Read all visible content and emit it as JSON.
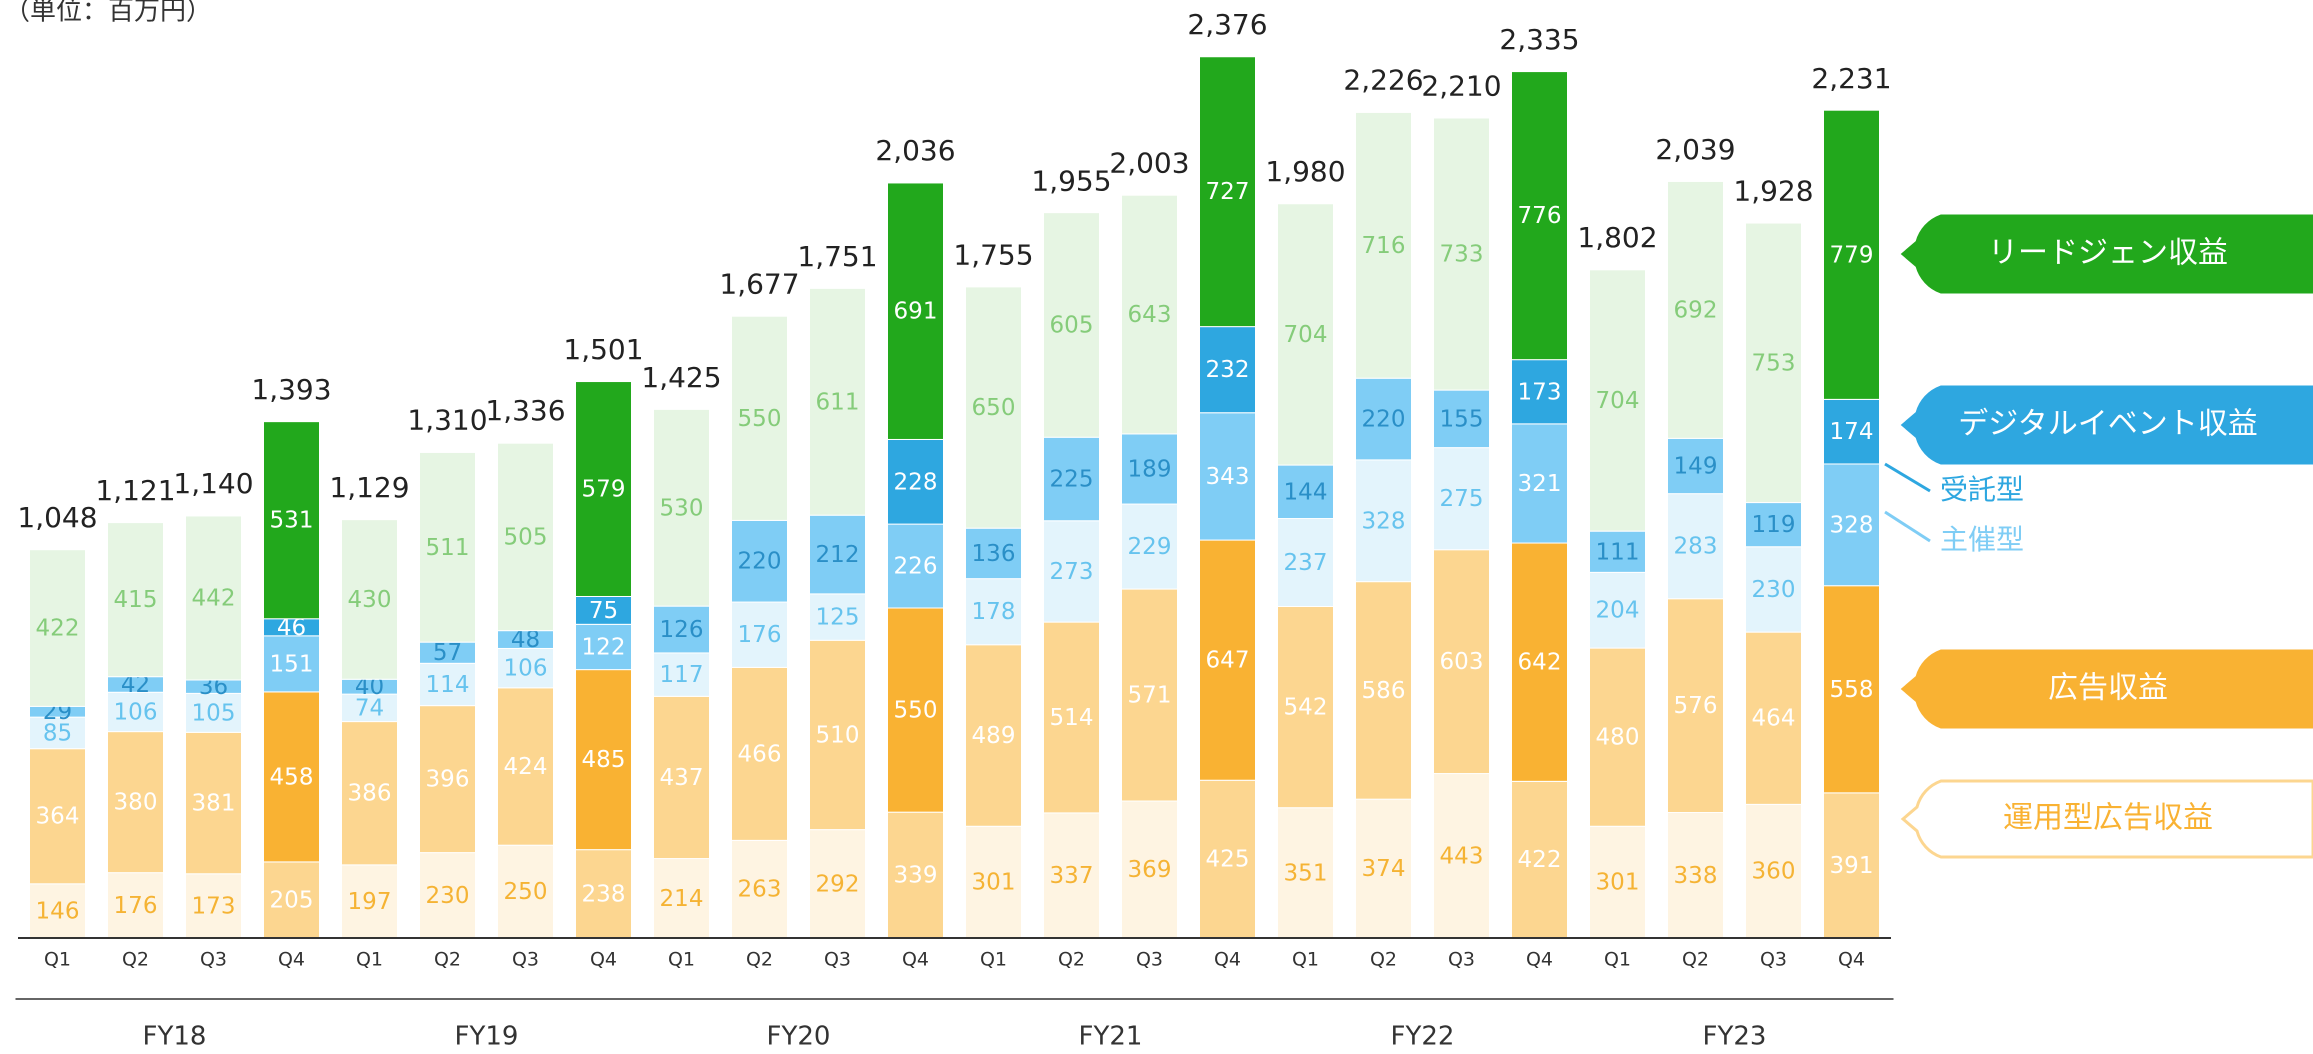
{
  "chart_data": {
    "type": "stacked_bar",
    "unit_note": "（単位：百万円）",
    "categories": [
      "Q1",
      "Q2",
      "Q3",
      "Q4",
      "Q1",
      "Q2",
      "Q3",
      "Q4",
      "Q1",
      "Q2",
      "Q3",
      "Q4",
      "Q1",
      "Q2",
      "Q3",
      "Q4",
      "Q1",
      "Q2",
      "Q3",
      "Q4",
      "Q1",
      "Q2",
      "Q3",
      "Q4"
    ],
    "groups": [
      {
        "label": "FY18",
        "span": 4
      },
      {
        "label": "FY19",
        "span": 4
      },
      {
        "label": "FY20",
        "span": 4
      },
      {
        "label": "FY21",
        "span": 4
      },
      {
        "label": "FY22",
        "span": 4
      },
      {
        "label": "FY23",
        "span": 4
      }
    ],
    "highlight_indices": [
      3,
      7,
      11,
      15,
      19,
      23
    ],
    "highlight_label_color": "#ffffff",
    "series": [
      {
        "name": "運用型広告収益",
        "color": "#fef4e2",
        "highlight_color": "#fcd690",
        "label_color": "#f5b334",
        "values": [
          146,
          176,
          173,
          205,
          197,
          230,
          250,
          238,
          214,
          263,
          292,
          339,
          301,
          337,
          369,
          425,
          351,
          374,
          443,
          422,
          301,
          338,
          360,
          391
        ]
      },
      {
        "name": "広告収益",
        "color": "#fcd690",
        "highlight_color": "#f9b233",
        "label_color": "#ffffff",
        "values": [
          364,
          380,
          381,
          458,
          386,
          396,
          424,
          485,
          437,
          466,
          510,
          550,
          489,
          514,
          571,
          647,
          542,
          586,
          603,
          642,
          480,
          576,
          464,
          558
        ]
      },
      {
        "name": "主催型",
        "color": "#e3f4fc",
        "highlight_color": "#7fcdf5",
        "label_color": "#66c3ee",
        "values": [
          85,
          106,
          105,
          151,
          74,
          114,
          106,
          122,
          117,
          176,
          125,
          226,
          178,
          273,
          229,
          343,
          237,
          328,
          275,
          321,
          204,
          283,
          230,
          328
        ]
      },
      {
        "name": "受託型",
        "color": "#7fcdf5",
        "highlight_color": "#2ea7e0",
        "label_color": "#2a8fc7",
        "values": [
          29,
          42,
          36,
          46,
          40,
          57,
          48,
          75,
          126,
          220,
          212,
          228,
          136,
          225,
          189,
          232,
          144,
          220,
          155,
          173,
          111,
          149,
          119,
          174
        ]
      },
      {
        "name": "リードジェン収益",
        "color": "#e6f5e3",
        "highlight_color": "#22a81c",
        "label_color": "#85cc7a",
        "values": [
          422,
          415,
          442,
          531,
          430,
          511,
          505,
          579,
          530,
          550,
          611,
          691,
          650,
          605,
          643,
          727,
          704,
          716,
          733,
          776,
          704,
          692,
          753,
          779
        ]
      }
    ],
    "totals": [
      1048,
      1121,
      1140,
      1393,
      1129,
      1310,
      1336,
      1501,
      1425,
      1677,
      1751,
      2036,
      1755,
      1955,
      2003,
      2376,
      1980,
      2226,
      2210,
      2335,
      1802,
      2039,
      1928,
      2231
    ],
    "total_labels": [
      "1,048",
      "1,121",
      "1,140",
      "1,393",
      "1,129",
      "1,310",
      "1,336",
      "1,501",
      "1,425",
      "1,677",
      "1,751",
      "2,036",
      "1,755",
      "1,955",
      "2,003",
      "2,376",
      "1,980",
      "2,226",
      "2,210",
      "2,335",
      "1,802",
      "2,039",
      "1,928",
      "2,231"
    ],
    "legend": {
      "group_label": "デジタルイベント収益",
      "group_color": "#2ea7e0"
    }
  }
}
